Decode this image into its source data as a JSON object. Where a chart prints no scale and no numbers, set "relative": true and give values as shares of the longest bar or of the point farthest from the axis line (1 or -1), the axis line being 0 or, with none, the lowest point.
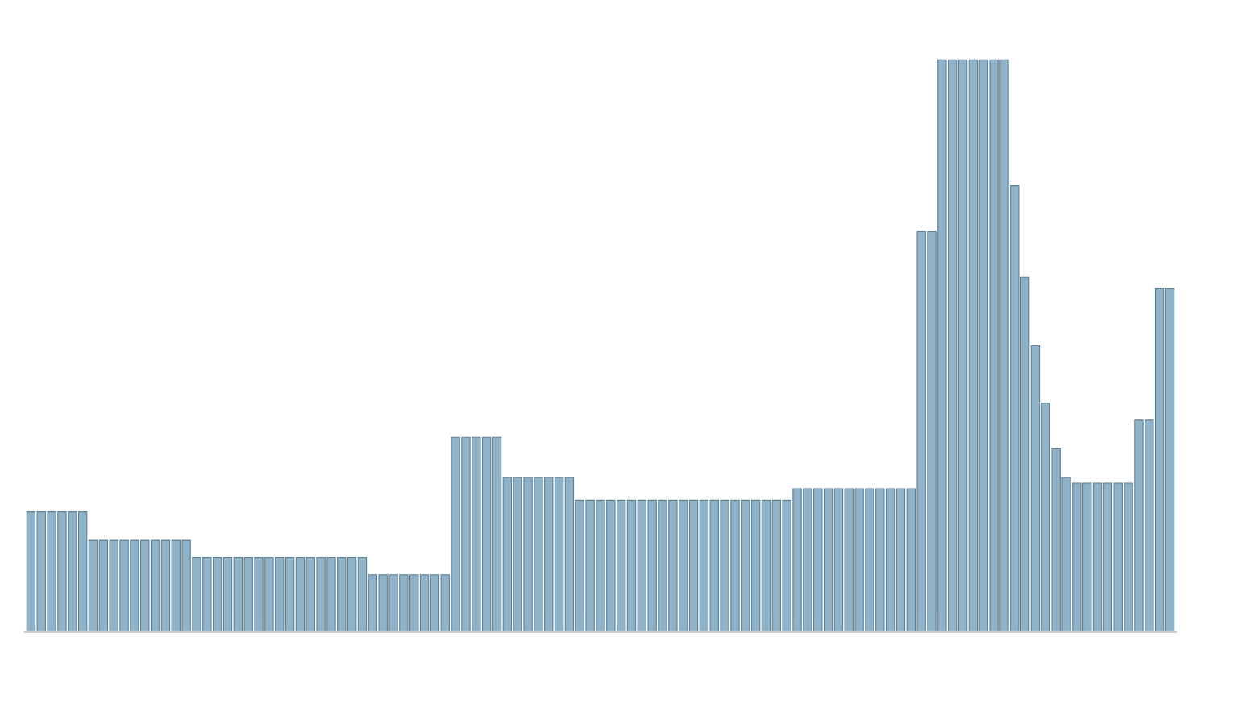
{
  "chart_data": {
    "type": "bar",
    "relative": true,
    "color": "#8fb3c9",
    "categories": [
      null,
      null,
      null,
      null,
      null,
      null,
      null,
      null,
      null,
      null,
      null,
      null,
      null,
      null,
      null,
      null,
      null,
      null,
      null,
      null,
      null,
      null,
      null,
      null,
      null,
      null,
      null,
      null,
      null,
      null,
      null,
      null,
      null,
      null,
      null,
      null,
      null,
      null,
      null,
      null,
      null,
      null,
      null,
      null,
      null,
      null,
      null,
      null,
      null,
      null,
      null,
      null,
      null,
      null,
      null,
      null,
      null,
      null,
      null,
      null,
      null,
      null,
      null,
      null,
      null,
      null,
      null,
      null,
      null,
      null,
      null,
      null,
      null,
      null,
      null,
      null,
      null,
      null,
      null,
      null,
      null,
      null,
      null,
      null,
      null,
      null,
      null,
      null,
      null,
      null,
      null,
      null,
      null,
      null,
      null,
      null,
      null,
      null,
      null,
      null,
      null,
      null,
      null,
      null,
      null,
      null,
      null,
      null,
      null,
      null,
      null
    ],
    "values": [
      0.21,
      0.21,
      0.21,
      0.21,
      0.21,
      0.21,
      0.16,
      0.16,
      0.16,
      0.16,
      0.16,
      0.16,
      0.16,
      0.16,
      0.16,
      0.16,
      0.13,
      0.13,
      0.13,
      0.13,
      0.13,
      0.13,
      0.13,
      0.13,
      0.13,
      0.13,
      0.13,
      0.13,
      0.13,
      0.13,
      0.13,
      0.13,
      0.13,
      0.1,
      0.1,
      0.1,
      0.1,
      0.1,
      0.1,
      0.1,
      0.1,
      0.34,
      0.34,
      0.34,
      0.34,
      0.34,
      0.27,
      0.27,
      0.27,
      0.27,
      0.27,
      0.27,
      0.27,
      0.23,
      0.23,
      0.23,
      0.23,
      0.23,
      0.23,
      0.23,
      0.23,
      0.23,
      0.23,
      0.23,
      0.23,
      0.23,
      0.23,
      0.23,
      0.23,
      0.23,
      0.23,
      0.23,
      0.23,
      0.23,
      0.25,
      0.25,
      0.25,
      0.25,
      0.25,
      0.25,
      0.25,
      0.25,
      0.25,
      0.25,
      0.25,
      0.25,
      0.7,
      0.7,
      1,
      1,
      1,
      1,
      1,
      1,
      1,
      0.78,
      0.62,
      0.5,
      0.4,
      0.32,
      0.27,
      0.26,
      0.26,
      0.26,
      0.26,
      0.26,
      0.26,
      0.37,
      0.37,
      0.6,
      0.6
    ]
  }
}
